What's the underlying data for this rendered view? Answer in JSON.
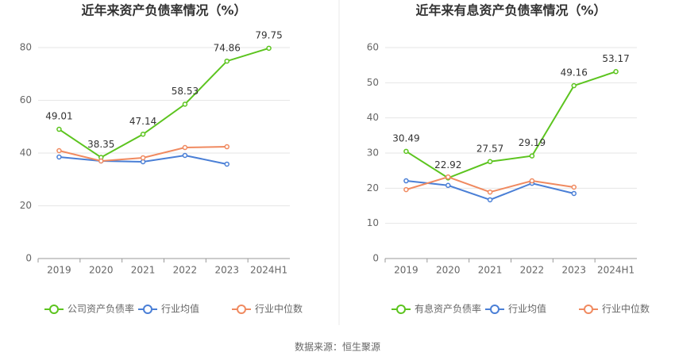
{
  "chart_data": [
    {
      "type": "line",
      "title": "近年来资产负债率情况（%）",
      "categories": [
        "2019",
        "2020",
        "2021",
        "2022",
        "2023",
        "2024H1"
      ],
      "ylim": [
        0,
        80
      ],
      "yticks": [
        0,
        20,
        40,
        60,
        80
      ],
      "grid": true,
      "series": [
        {
          "name": "公司资产负债率",
          "color": "#5cc41f",
          "show_labels": true,
          "values": [
            49.01,
            38.35,
            47.14,
            58.53,
            74.86,
            79.75
          ]
        },
        {
          "name": "行业均值",
          "color": "#4a7fd6",
          "values": [
            38.5,
            37.0,
            36.7,
            39.1,
            35.8,
            null
          ]
        },
        {
          "name": "行业中位数",
          "color": "#f08a60",
          "values": [
            40.9,
            37.0,
            38.2,
            42.1,
            42.4,
            null
          ]
        }
      ]
    },
    {
      "type": "line",
      "title": "近年来有息资产负债率情况（%）",
      "categories": [
        "2019",
        "2020",
        "2021",
        "2022",
        "2023",
        "2024H1"
      ],
      "ylim": [
        0,
        60
      ],
      "yticks": [
        0,
        10,
        20,
        30,
        40,
        50,
        60
      ],
      "grid": true,
      "series": [
        {
          "name": "有息资产负债率",
          "color": "#5cc41f",
          "show_labels": true,
          "values": [
            30.49,
            22.92,
            27.57,
            29.19,
            49.16,
            53.17
          ]
        },
        {
          "name": "行业均值",
          "color": "#4a7fd6",
          "values": [
            22.1,
            20.8,
            16.7,
            21.4,
            18.5,
            null
          ]
        },
        {
          "name": "行业中位数",
          "color": "#f08a60",
          "values": [
            19.6,
            23.2,
            18.9,
            22.1,
            20.3,
            null
          ]
        }
      ]
    }
  ],
  "source": "数据来源：恒生聚源"
}
